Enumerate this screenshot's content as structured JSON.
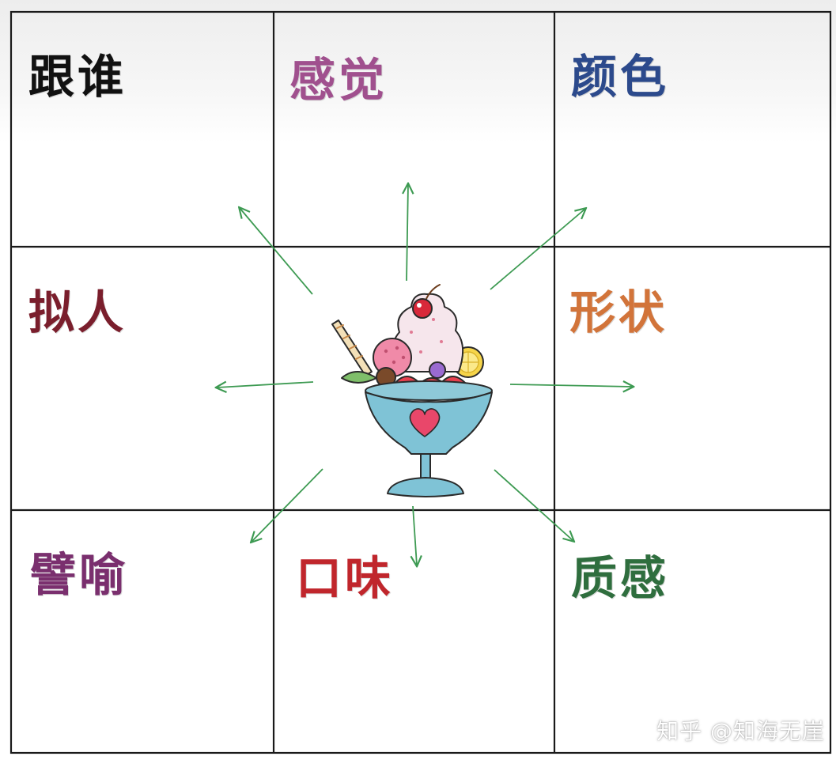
{
  "labels": {
    "who": "跟谁",
    "feeling": "感觉",
    "color": "颜色",
    "personify": "拟人",
    "shape": "形状",
    "metaphor": "譬喻",
    "taste": "口味",
    "texture": "质感"
  },
  "colors": {
    "who": "#111111",
    "feeling": "#a0508e",
    "color": "#2c4a8c",
    "personify": "#7a1e2c",
    "shape": "#d2743a",
    "metaphor": "#7a2f6e",
    "taste": "#c0262c",
    "texture": "#2f6e3e",
    "arrow": "#3d9a52",
    "grid": "#1a1a1a"
  },
  "center_icon": "ice-cream-sundae-icon",
  "watermark": "知乎 @知海无崖"
}
